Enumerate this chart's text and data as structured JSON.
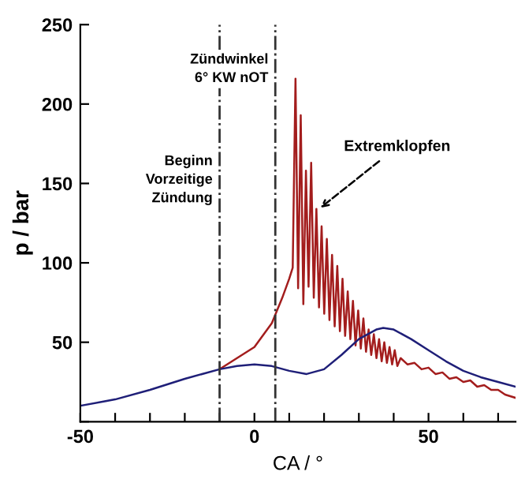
{
  "chart_data": {
    "type": "line",
    "xlabel": "CA / °",
    "ylabel": "p / bar",
    "xlim": [
      -50,
      75
    ],
    "ylim": [
      0,
      250
    ],
    "xticks": [
      -50,
      {
        "value": -40,
        "label": null
      },
      {
        "value": -30,
        "label": null
      },
      {
        "value": -20,
        "label": null
      },
      {
        "value": -10,
        "label": null
      },
      0,
      {
        "value": 10,
        "label": null
      },
      {
        "value": 20,
        "label": null
      },
      {
        "value": 30,
        "label": null
      },
      {
        "value": 40,
        "label": null
      },
      50,
      {
        "value": 60,
        "label": null
      },
      {
        "value": 70,
        "label": null
      }
    ],
    "yticks": [
      {
        "value": 0,
        "label": null
      },
      50,
      100,
      150,
      200,
      250
    ],
    "grid": false,
    "legend": false,
    "line_style": "solid",
    "marker": "none",
    "series": [
      {
        "color": "#a31d1d",
        "x": [
          -10,
          -5,
          0,
          5,
          8,
          10,
          11,
          11.8,
          12.55,
          13.3,
          14.05,
          14.8,
          15.55,
          16.3,
          17.05,
          17.8,
          18.55,
          19.3,
          20.05,
          20.8,
          21.55,
          22.3,
          23.05,
          23.8,
          24.55,
          25.3,
          26.05,
          26.8,
          27.55,
          28.3,
          29.05,
          29.8,
          30.55,
          31.3,
          32.05,
          32.8,
          33.55,
          34.3,
          35.05,
          35.8,
          36.55,
          37.3,
          38.05,
          38.8,
          39.55,
          40.3,
          41.05,
          42,
          44,
          46,
          48,
          50,
          52,
          54,
          56,
          58,
          60,
          62,
          64,
          66,
          68,
          70,
          72,
          75
        ],
        "values": [
          33,
          40,
          47,
          62,
          78,
          90,
          97,
          216,
          84,
          193,
          74,
          158,
          85,
          163,
          78,
          134,
          72,
          123,
          68,
          115,
          64,
          105,
          60,
          98,
          57,
          90,
          54,
          82,
          52,
          76,
          48,
          70,
          46,
          65,
          44,
          58,
          42,
          55,
          40,
          52,
          38,
          50,
          37,
          47,
          36,
          45,
          35,
          40,
          36,
          37,
          33,
          34,
          30,
          31,
          27,
          28,
          25,
          26,
          22,
          23,
          20,
          20,
          17,
          15
        ]
      },
      {
        "color": "#1f1f78",
        "x": [
          -50,
          -40,
          -30,
          -20,
          -10,
          -5,
          0,
          5,
          10,
          15,
          20,
          25,
          30,
          35,
          37,
          40,
          45,
          50,
          55,
          60,
          65,
          70,
          75
        ],
        "values": [
          10,
          14,
          20,
          27,
          33,
          35,
          36,
          35,
          32,
          30,
          33,
          42,
          52,
          58,
          59,
          58,
          52,
          45,
          38,
          32,
          28,
          25,
          22
        ]
      }
    ],
    "ref_lines": [
      {
        "axis": "x",
        "value": -10,
        "color": "#333333",
        "line_style": "dashdot"
      },
      {
        "axis": "x",
        "value": 6,
        "color": "#333333",
        "line_style": "dashdot"
      }
    ],
    "annotations": [
      {
        "text": "Beginn\nVorzeitige\nZündung",
        "x": -10,
        "y": 168
      },
      {
        "text": "Zündwinkel\n6° KW nOT",
        "x": 6,
        "y": 232
      },
      {
        "text": "Extremklopfen",
        "x": 18,
        "y": 133
      }
    ]
  }
}
